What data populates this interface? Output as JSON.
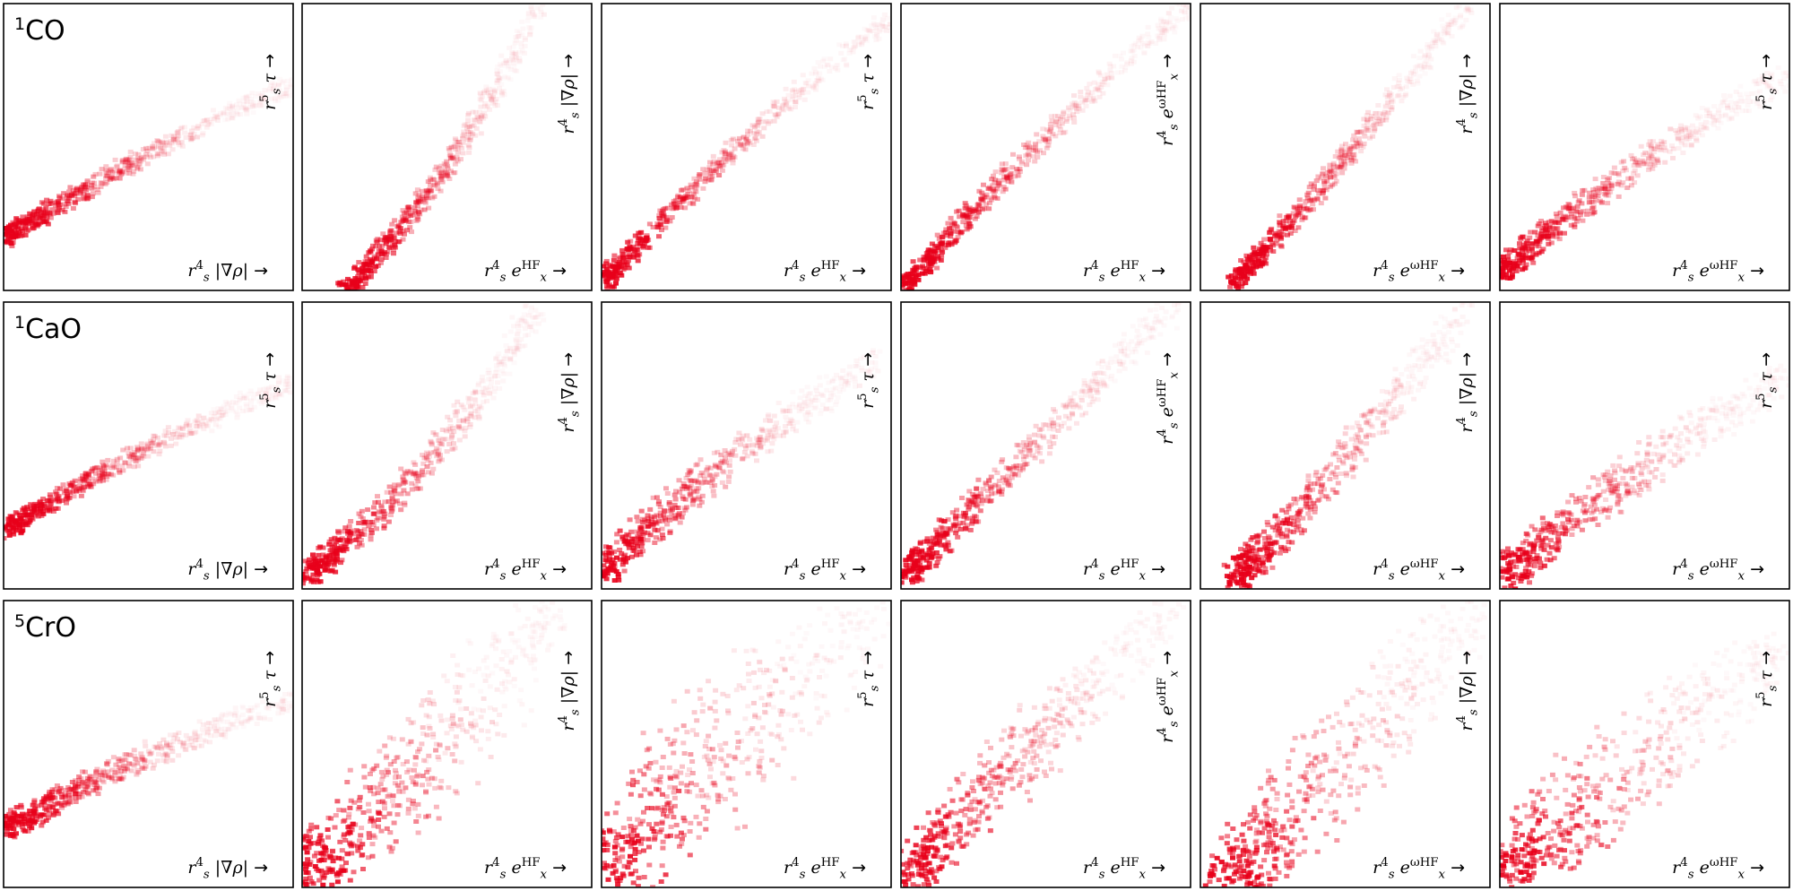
{
  "chart_data": {
    "type": "heatmap",
    "layout": "3 rows x 6 columns grid of 2D density plots; no numeric ticks shown",
    "colormap": "white-to-red (Reds)",
    "grid": false,
    "rows": [
      {
        "label": "1CO",
        "label_sup": "1",
        "label_base": "CO"
      },
      {
        "label": "1CaO",
        "label_sup": "1",
        "label_base": "CaO"
      },
      {
        "label": "5CrO",
        "label_sup": "5",
        "label_base": "CrO"
      }
    ],
    "columns": [
      {
        "xlabel": "r_s^4 |∇ρ| →",
        "ylabel": "r_s^5 τ →"
      },
      {
        "xlabel": "r_s^4 e_x^HF →",
        "ylabel": "r_s^4 |∇ρ| →"
      },
      {
        "xlabel": "r_s^4 e_x^HF →",
        "ylabel": "r_s^5 τ →"
      },
      {
        "xlabel": "r_s^4 e_x^HF →",
        "ylabel": "r_s^4 e_x^ωHF →"
      },
      {
        "xlabel": "r_s^4 e_x^ωHF →",
        "ylabel": "r_s^4 |∇ρ| →"
      },
      {
        "xlabel": "r_s^4 e_x^ωHF →",
        "ylabel": "r_s^5 τ →"
      }
    ],
    "panels": [
      [
        {
          "start": [
            0.0,
            0.18
          ],
          "end": [
            1.0,
            0.72
          ],
          "bend": 0.04,
          "width": 0.03,
          "spread": 0.0,
          "fringe": 0.0
        },
        {
          "start": [
            0.15,
            0.0
          ],
          "end": [
            0.82,
            1.0
          ],
          "bend": -0.08,
          "width": 0.03,
          "spread": 0.0,
          "fringe": 0.0
        },
        {
          "start": [
            0.0,
            0.02
          ],
          "end": [
            1.0,
            0.95
          ],
          "bend": 0.05,
          "width": 0.03,
          "spread": 0.0,
          "fringe": 0.0
        },
        {
          "start": [
            0.02,
            0.02
          ],
          "end": [
            1.0,
            1.0
          ],
          "bend": 0.04,
          "width": 0.03,
          "spread": 0.0,
          "fringe": 0.0
        },
        {
          "start": [
            0.12,
            0.03
          ],
          "end": [
            0.92,
            1.0
          ],
          "bend": -0.03,
          "width": 0.03,
          "spread": 0.0,
          "fringe": 0.0
        },
        {
          "start": [
            0.0,
            0.06
          ],
          "end": [
            1.0,
            0.75
          ],
          "bend": 0.06,
          "width": 0.04,
          "spread": 0.0,
          "fringe": 0.0
        }
      ],
      [
        {
          "start": [
            0.0,
            0.2
          ],
          "end": [
            1.0,
            0.72
          ],
          "bend": 0.05,
          "width": 0.03,
          "spread": 0.0,
          "fringe": 0.25
        },
        {
          "start": [
            0.02,
            0.05
          ],
          "end": [
            0.82,
            1.0
          ],
          "bend": -0.1,
          "width": 0.04,
          "spread": 0.0,
          "fringe": 0.3
        },
        {
          "start": [
            0.0,
            0.06
          ],
          "end": [
            0.95,
            0.8
          ],
          "bend": 0.06,
          "width": 0.05,
          "spread": 0.0,
          "fringe": 0.3
        },
        {
          "start": [
            0.02,
            0.05
          ],
          "end": [
            0.95,
            1.0
          ],
          "bend": 0.0,
          "width": 0.04,
          "spread": 0.0,
          "fringe": 0.3
        },
        {
          "start": [
            0.12,
            0.03
          ],
          "end": [
            0.92,
            1.0
          ],
          "bend": -0.03,
          "width": 0.05,
          "spread": 0.0,
          "fringe": 0.35
        },
        {
          "start": [
            0.0,
            0.03
          ],
          "end": [
            1.0,
            0.75
          ],
          "bend": 0.05,
          "width": 0.06,
          "spread": 0.0,
          "fringe": 0.35
        }
      ],
      [
        {
          "start": [
            0.0,
            0.2
          ],
          "end": [
            1.0,
            0.66
          ],
          "bend": 0.05,
          "width": 0.03,
          "spread": 0.04,
          "fringe": 0.3
        },
        {
          "start": [
            0.02,
            0.06
          ],
          "end": [
            0.86,
            1.0
          ],
          "bend": -0.08,
          "width": 0.06,
          "spread": 0.18,
          "fringe": 0.6
        },
        {
          "start": [
            0.0,
            0.04
          ],
          "end": [
            0.98,
            1.0
          ],
          "bend": 0.04,
          "width": 0.07,
          "spread": 0.22,
          "fringe": 0.65
        },
        {
          "start": [
            0.02,
            0.04
          ],
          "end": [
            0.96,
            1.0
          ],
          "bend": 0.02,
          "width": 0.05,
          "spread": 0.12,
          "fringe": 0.5
        },
        {
          "start": [
            0.08,
            0.02
          ],
          "end": [
            0.96,
            1.0
          ],
          "bend": -0.02,
          "width": 0.06,
          "spread": 0.2,
          "fringe": 0.6
        },
        {
          "start": [
            0.0,
            0.04
          ],
          "end": [
            1.0,
            0.85
          ],
          "bend": 0.03,
          "width": 0.06,
          "spread": 0.2,
          "fringe": 0.6
        }
      ]
    ]
  }
}
